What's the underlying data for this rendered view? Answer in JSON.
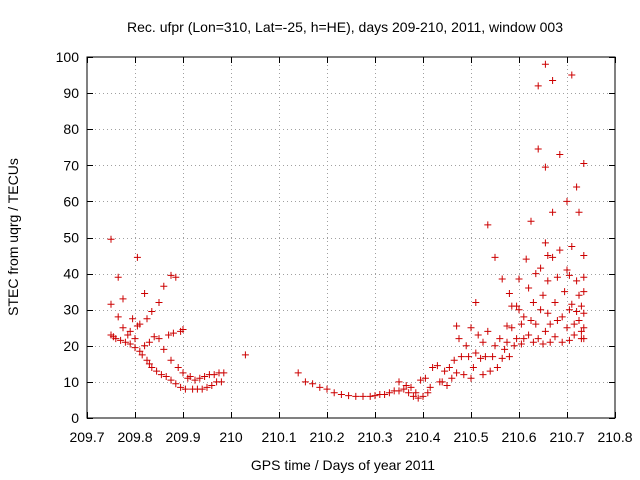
{
  "chart_data": {
    "type": "scatter",
    "title": "Rec. ufpr (Lon=310, Lat=-25, h=HE), days 209-210, 2011, window 003",
    "xlabel": "GPS time / Days of year 2011",
    "ylabel": "STEC from uqrg / TECUs",
    "xlim": [
      209.7,
      210.8
    ],
    "ylim": [
      0,
      100
    ],
    "xticks": [
      209.7,
      209.8,
      209.9,
      210,
      210.1,
      210.2,
      210.3,
      210.4,
      210.5,
      210.6,
      210.7,
      210.8
    ],
    "xtick_labels": [
      "209.7",
      "209.8",
      "209.9",
      "210",
      "210.1",
      "210.2",
      "210.3",
      "210.4",
      "210.5",
      "210.6",
      "210.7",
      "210.8"
    ],
    "yticks": [
      0,
      10,
      20,
      30,
      40,
      50,
      60,
      70,
      80,
      90,
      100
    ],
    "ytick_labels": [
      "0",
      "10",
      "20",
      "30",
      "40",
      "50",
      "60",
      "70",
      "80",
      "90",
      "100"
    ],
    "grid": true,
    "marker": "+",
    "marker_color": "#cc0000",
    "series": [
      {
        "name": "STEC",
        "points": [
          [
            209.75,
            49.5
          ],
          [
            209.75,
            31.5
          ],
          [
            209.75,
            23
          ],
          [
            209.755,
            22.5
          ],
          [
            209.76,
            22
          ],
          [
            209.765,
            39
          ],
          [
            209.765,
            28
          ],
          [
            209.77,
            21.5
          ],
          [
            209.775,
            25
          ],
          [
            209.775,
            33
          ],
          [
            209.78,
            21
          ],
          [
            209.785,
            23
          ],
          [
            209.79,
            20.5
          ],
          [
            209.79,
            24
          ],
          [
            209.795,
            27.5
          ],
          [
            209.8,
            22
          ],
          [
            209.8,
            19.5
          ],
          [
            209.805,
            44.5
          ],
          [
            209.805,
            25.5
          ],
          [
            209.81,
            18.5
          ],
          [
            209.81,
            26
          ],
          [
            209.815,
            17.5
          ],
          [
            209.82,
            20
          ],
          [
            209.82,
            34.5
          ],
          [
            209.825,
            16
          ],
          [
            209.825,
            27.5
          ],
          [
            209.83,
            15
          ],
          [
            209.83,
            21
          ],
          [
            209.835,
            29.5
          ],
          [
            209.835,
            14
          ],
          [
            209.84,
            22.5
          ],
          [
            209.845,
            13
          ],
          [
            209.85,
            32
          ],
          [
            209.85,
            22
          ],
          [
            209.855,
            12
          ],
          [
            209.86,
            19
          ],
          [
            209.86,
            36.5
          ],
          [
            209.865,
            11.5
          ],
          [
            209.87,
            23
          ],
          [
            209.875,
            10.5
          ],
          [
            209.875,
            39.5
          ],
          [
            209.875,
            16
          ],
          [
            209.88,
            23.5
          ],
          [
            209.885,
            9.5
          ],
          [
            209.885,
            39
          ],
          [
            209.89,
            14
          ],
          [
            209.895,
            24
          ],
          [
            209.895,
            8.5
          ],
          [
            209.9,
            12.5
          ],
          [
            209.9,
            24.5
          ],
          [
            209.905,
            8
          ],
          [
            209.91,
            11
          ],
          [
            209.915,
            11.5
          ],
          [
            209.92,
            8
          ],
          [
            209.925,
            10.5
          ],
          [
            209.93,
            8
          ],
          [
            209.935,
            11
          ],
          [
            209.94,
            8
          ],
          [
            209.945,
            11.5
          ],
          [
            209.95,
            8.5
          ],
          [
            209.955,
            12
          ],
          [
            209.96,
            9
          ],
          [
            209.965,
            12
          ],
          [
            209.97,
            10
          ],
          [
            209.975,
            12.5
          ],
          [
            209.98,
            10
          ],
          [
            209.985,
            12.5
          ],
          [
            210.03,
            17.5
          ],
          [
            210.14,
            12.5
          ],
          [
            210.155,
            10
          ],
          [
            210.17,
            9.5
          ],
          [
            210.185,
            8.5
          ],
          [
            210.2,
            8
          ],
          [
            210.215,
            7
          ],
          [
            210.23,
            6.5
          ],
          [
            210.245,
            6.2
          ],
          [
            210.26,
            6
          ],
          [
            210.275,
            6
          ],
          [
            210.29,
            6
          ],
          [
            210.3,
            6.2
          ],
          [
            210.31,
            6.5
          ],
          [
            210.32,
            6.5
          ],
          [
            210.33,
            7
          ],
          [
            210.34,
            7.5
          ],
          [
            210.35,
            10
          ],
          [
            210.35,
            7.5
          ],
          [
            210.36,
            8
          ],
          [
            210.365,
            9
          ],
          [
            210.37,
            7
          ],
          [
            210.375,
            8.5
          ],
          [
            210.38,
            6
          ],
          [
            210.385,
            7
          ],
          [
            210.39,
            5.5
          ],
          [
            210.395,
            10.5
          ],
          [
            210.4,
            6
          ],
          [
            210.405,
            11
          ],
          [
            210.41,
            7
          ],
          [
            210.415,
            8.5
          ],
          [
            210.42,
            14
          ],
          [
            210.43,
            14.5
          ],
          [
            210.435,
            10
          ],
          [
            210.44,
            10
          ],
          [
            210.445,
            13
          ],
          [
            210.45,
            9
          ],
          [
            210.455,
            14
          ],
          [
            210.46,
            11
          ],
          [
            210.465,
            16
          ],
          [
            210.47,
            25.5
          ],
          [
            210.47,
            12.5
          ],
          [
            210.475,
            22
          ],
          [
            210.48,
            17
          ],
          [
            210.485,
            12
          ],
          [
            210.49,
            20
          ],
          [
            210.495,
            17
          ],
          [
            210.5,
            25
          ],
          [
            210.5,
            11
          ],
          [
            210.505,
            14
          ],
          [
            210.51,
            18
          ],
          [
            210.51,
            32
          ],
          [
            210.515,
            23
          ],
          [
            210.52,
            16.5
          ],
          [
            210.525,
            12
          ],
          [
            210.525,
            21
          ],
          [
            210.53,
            17
          ],
          [
            210.535,
            53.5
          ],
          [
            210.535,
            24
          ],
          [
            210.54,
            13
          ],
          [
            210.545,
            17
          ],
          [
            210.55,
            20
          ],
          [
            210.55,
            44.5
          ],
          [
            210.555,
            14
          ],
          [
            210.56,
            22
          ],
          [
            210.565,
            16.5
          ],
          [
            210.565,
            38.5
          ],
          [
            210.57,
            19
          ],
          [
            210.575,
            25.5
          ],
          [
            210.575,
            21
          ],
          [
            210.58,
            34.5
          ],
          [
            210.58,
            17
          ],
          [
            210.585,
            25
          ],
          [
            210.585,
            31
          ],
          [
            210.59,
            20
          ],
          [
            210.595,
            22
          ],
          [
            210.595,
            31
          ],
          [
            210.6,
            38.5
          ],
          [
            210.6,
            30
          ],
          [
            210.605,
            26
          ],
          [
            210.605,
            20.5
          ],
          [
            210.61,
            28
          ],
          [
            210.61,
            22
          ],
          [
            210.615,
            44
          ],
          [
            210.62,
            36
          ],
          [
            210.62,
            23
          ],
          [
            210.625,
            27
          ],
          [
            210.625,
            54.5
          ],
          [
            210.63,
            32
          ],
          [
            210.63,
            21
          ],
          [
            210.635,
            40
          ],
          [
            210.635,
            26
          ],
          [
            210.64,
            92
          ],
          [
            210.64,
            74.5
          ],
          [
            210.64,
            22
          ],
          [
            210.645,
            30
          ],
          [
            210.645,
            41.5
          ],
          [
            210.65,
            20.5
          ],
          [
            210.65,
            34
          ],
          [
            210.655,
            98
          ],
          [
            210.655,
            69.5
          ],
          [
            210.655,
            48.5
          ],
          [
            210.655,
            24
          ],
          [
            210.66,
            45
          ],
          [
            210.66,
            38
          ],
          [
            210.66,
            29
          ],
          [
            210.665,
            21
          ],
          [
            210.665,
            26
          ],
          [
            210.67,
            93.5
          ],
          [
            210.67,
            57
          ],
          [
            210.67,
            44.5
          ],
          [
            210.675,
            32
          ],
          [
            210.675,
            22.5
          ],
          [
            210.68,
            39
          ],
          [
            210.68,
            27
          ],
          [
            210.685,
            73
          ],
          [
            210.685,
            46.5
          ],
          [
            210.69,
            28
          ],
          [
            210.69,
            21
          ],
          [
            210.695,
            35
          ],
          [
            210.7,
            60
          ],
          [
            210.7,
            41
          ],
          [
            210.7,
            25
          ],
          [
            210.705,
            39.5
          ],
          [
            210.705,
            30
          ],
          [
            210.705,
            21.5
          ],
          [
            210.71,
            95
          ],
          [
            210.71,
            47.5
          ],
          [
            210.71,
            31.5
          ],
          [
            210.715,
            26
          ],
          [
            210.715,
            23
          ],
          [
            210.72,
            64
          ],
          [
            210.72,
            38
          ],
          [
            210.72,
            29.5
          ],
          [
            210.725,
            57
          ],
          [
            210.725,
            27
          ],
          [
            210.725,
            34
          ],
          [
            210.73,
            24
          ],
          [
            210.73,
            31
          ],
          [
            210.73,
            22
          ],
          [
            210.735,
            70.5
          ],
          [
            210.735,
            45
          ],
          [
            210.735,
            39
          ],
          [
            210.735,
            35
          ],
          [
            210.735,
            29
          ],
          [
            210.735,
            25
          ],
          [
            210.735,
            22
          ]
        ]
      }
    ]
  }
}
